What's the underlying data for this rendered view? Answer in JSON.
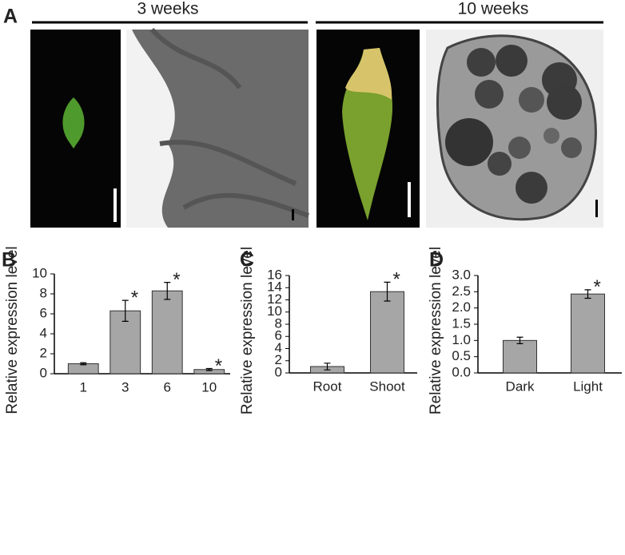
{
  "panel_a": {
    "label": "A",
    "groups": [
      "3 weeks",
      "10 weeks"
    ]
  },
  "chart_data": [
    {
      "type": "bar",
      "label": "B",
      "y_label": "Relative expression level",
      "categories": [
        "1",
        "3",
        "6",
        "10"
      ],
      "values": [
        1.0,
        6.3,
        8.3,
        0.42
      ],
      "errors": [
        0.1,
        1.05,
        0.85,
        0.1
      ],
      "significance": [
        null,
        "*",
        "*",
        "*"
      ],
      "color": "#a6a6a6",
      "ylim": [
        0,
        10
      ],
      "yticks": [
        0,
        2,
        4,
        6,
        8,
        10
      ]
    },
    {
      "type": "bar",
      "label": "C",
      "y_label": "Relative expression level",
      "categories": [
        "Root",
        "Shoot"
      ],
      "values": [
        1.05,
        13.35
      ],
      "errors": [
        0.55,
        1.55
      ],
      "significance": [
        null,
        "*"
      ],
      "color": "#a6a6a6",
      "ylim": [
        0,
        16
      ],
      "yticks": [
        0,
        2,
        4,
        6,
        8,
        10,
        12,
        14,
        16
      ]
    },
    {
      "type": "bar",
      "label": "D",
      "y_label": "Relative expression level",
      "categories": [
        "Dark",
        "Light"
      ],
      "values": [
        1.0,
        2.43
      ],
      "errors": [
        0.1,
        0.13
      ],
      "significance": [
        null,
        "*"
      ],
      "color": "#a6a6a6",
      "ylim": [
        0,
        3
      ],
      "yticks": [
        {
          "value": 0,
          "label": "0.0"
        },
        {
          "value": 0.5,
          "label": "0.5"
        },
        {
          "value": 1,
          "label": "1.0"
        },
        {
          "value": 1.5,
          "label": "1.5"
        },
        {
          "value": 2,
          "label": "2.0"
        },
        {
          "value": 2.5,
          "label": "2.5"
        },
        {
          "value": 3,
          "label": "3.0"
        }
      ]
    }
  ]
}
